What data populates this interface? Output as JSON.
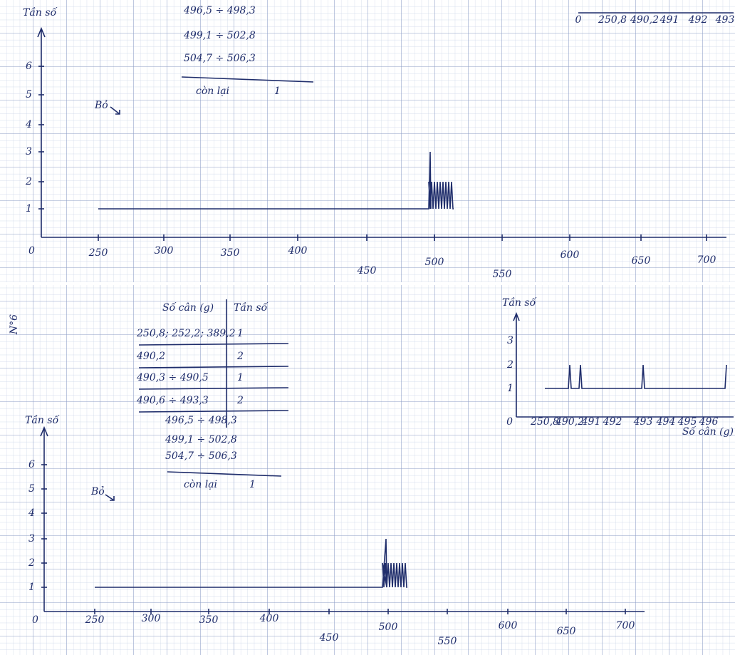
{
  "top_panel": {
    "table_rows": [
      "496,5 ÷ 498,3",
      "499,1 ÷ 502,8",
      "504,7 ÷ 506,3"
    ],
    "remainder": {
      "label": "còn lại",
      "count": "1"
    },
    "note": "Bỏ",
    "graph": {
      "y_label": "Tần số",
      "origin": "0",
      "y_ticks": [
        "1",
        "2",
        "3",
        "4",
        "5",
        "6"
      ],
      "x_ticks": [
        "250",
        "300",
        "350",
        "400",
        "450",
        "500",
        "550",
        "600",
        "650",
        "700"
      ]
    },
    "inset_x_ticks": [
      "0",
      "250,8",
      "490,2",
      "491",
      "492",
      "493"
    ]
  },
  "bottom_panel": {
    "page_number": "N°6",
    "table": {
      "header": [
        "Số cân (g)",
        "Tần số"
      ],
      "rows": [
        [
          "250,8; 252,2; 389,2",
          "1"
        ],
        [
          "490,2",
          "2"
        ],
        [
          "490,3 ÷ 490,5",
          "1"
        ],
        [
          "490,6 ÷ 493,3",
          "2"
        ]
      ],
      "more_ranges": [
        "496,5 ÷ 498,3",
        "499,1 ÷ 502,8",
        "504,7 ÷ 506,3"
      ]
    },
    "remainder": {
      "label": "còn lại",
      "count": "1"
    },
    "note": "Bỏ",
    "graph": {
      "y_label": "Tần số",
      "origin": "0",
      "y_ticks": [
        "1",
        "2",
        "3",
        "4",
        "5",
        "6"
      ],
      "x_ticks": [
        "250",
        "300",
        "350",
        "400",
        "450",
        "500",
        "550",
        "600",
        "650",
        "700"
      ]
    },
    "inset": {
      "y_label": "Tần số",
      "origin": "0",
      "y_ticks": [
        "1",
        "2",
        "3"
      ],
      "x_ticks": [
        "250,8",
        "490,2",
        "491",
        "492",
        "493",
        "494",
        "495",
        "496"
      ],
      "x_label": "Số cân (g)"
    }
  }
}
